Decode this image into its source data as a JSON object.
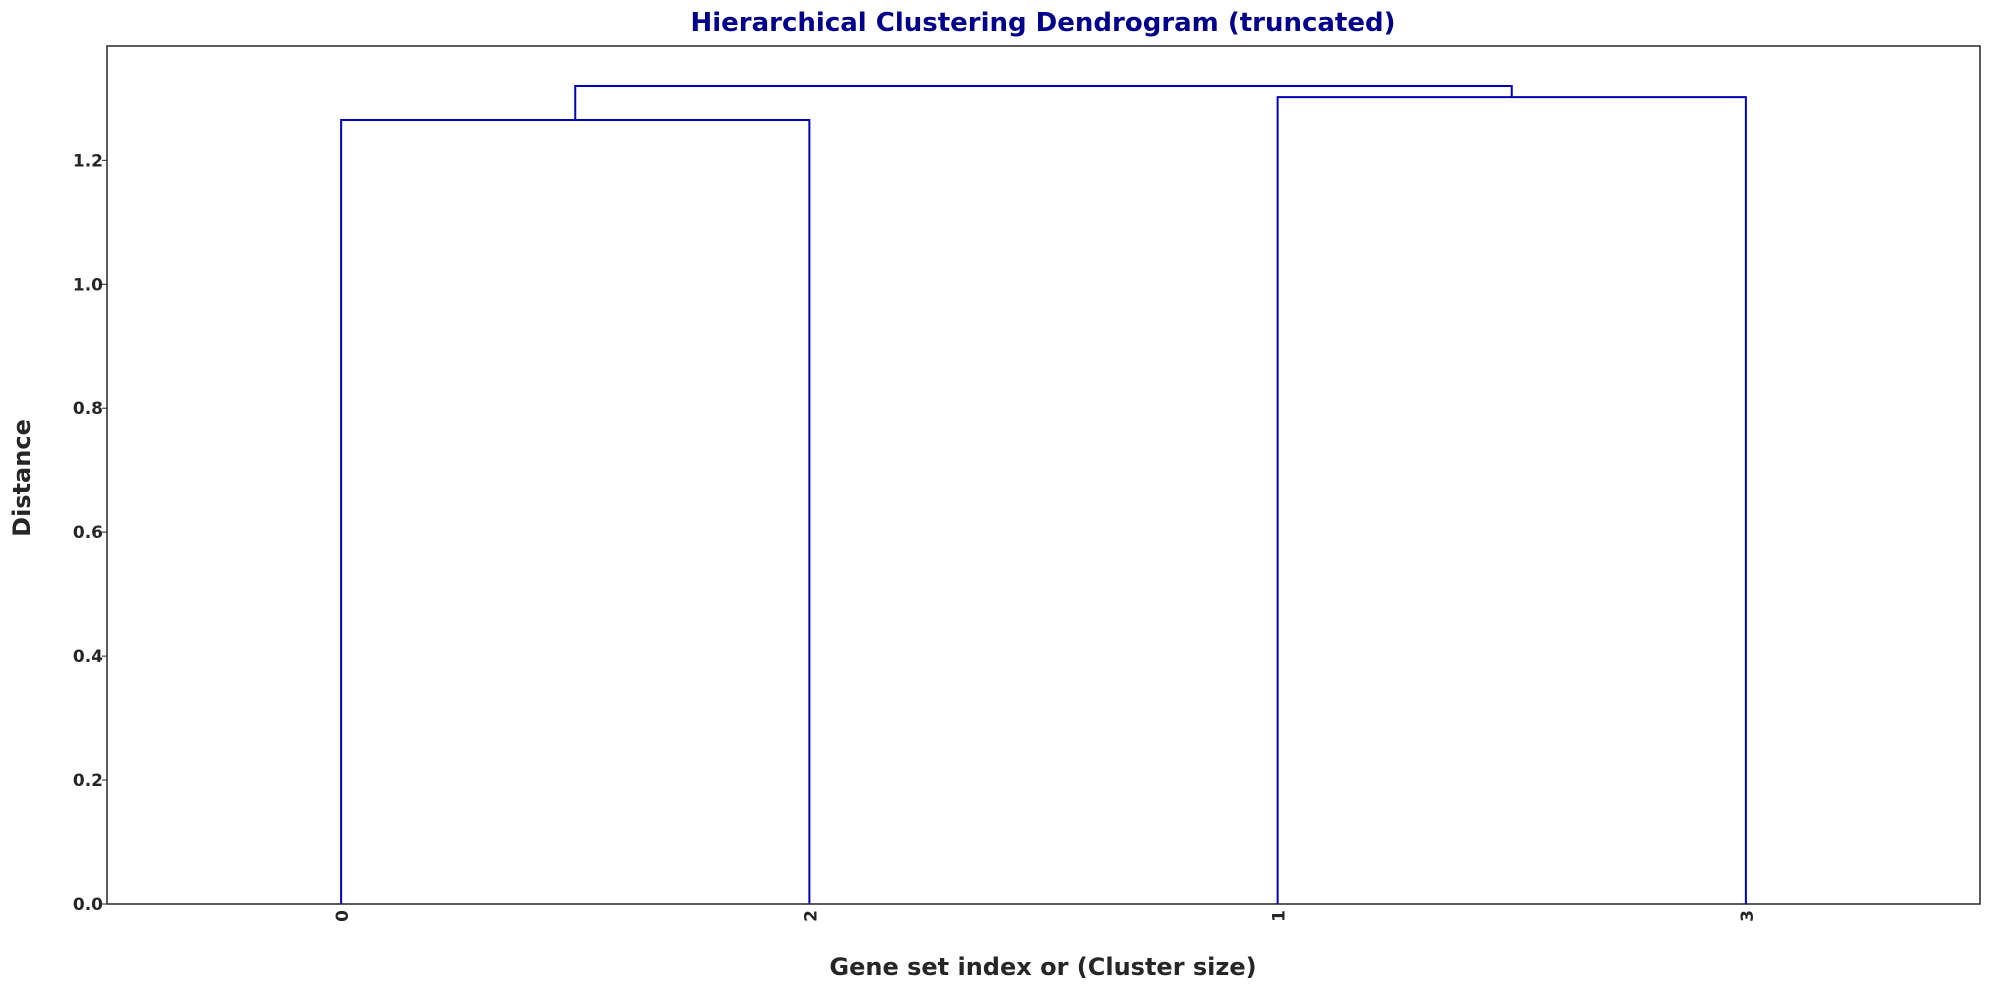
{
  "chart_data": {
    "type": "dendrogram",
    "title": "Hierarchical Clustering Dendrogram (truncated)",
    "xlabel": "Gene set index or (Cluster size)",
    "ylabel": "Distance",
    "leaves": [
      "0",
      "2",
      "1",
      "3"
    ],
    "merges": [
      {
        "left": "0",
        "right": "2",
        "height": 1.265
      },
      {
        "left": "1",
        "right": "3",
        "height": 1.302
      },
      {
        "left": "(0,2)",
        "right": "(1,3)",
        "height": 1.32
      }
    ],
    "yticks": [
      "0.0",
      "0.2",
      "0.4",
      "0.6",
      "0.8",
      "1.0",
      "1.2"
    ],
    "ylim": [
      0,
      1.3845
    ],
    "grid": false,
    "colors": {
      "link": "#0000b3",
      "title": "#00008b",
      "axes": "#262626"
    }
  }
}
